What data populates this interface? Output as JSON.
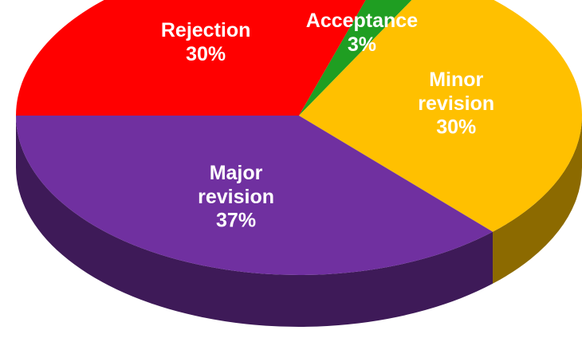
{
  "chart_data": {
    "type": "pie",
    "categories": [
      "Acceptance",
      "Minor revision",
      "Major revision",
      "Rejection"
    ],
    "values": [
      3,
      30,
      37,
      30
    ],
    "value_labels": [
      "3%",
      "30%",
      "37%",
      "30%"
    ],
    "colors": [
      "#1f9e22",
      "#ffc000",
      "#7030a0",
      "#ff0000"
    ]
  }
}
